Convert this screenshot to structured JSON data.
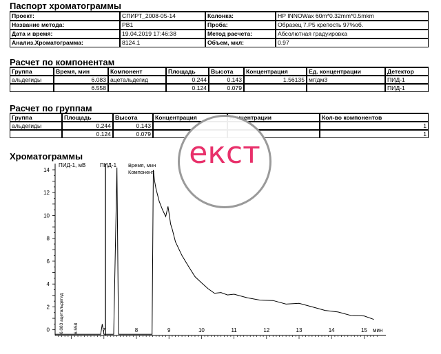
{
  "passport": {
    "title": "Паспорт хроматограммы",
    "rows": [
      [
        "Проект:",
        "СПИРТ_2008-05-14",
        "Колонка:",
        "HP INNOWax 60m*0.32mm*0.5mkm"
      ],
      [
        "Название метода:",
        "PB1",
        "Проба:",
        "Образец 7.Р5 крепость 97%об."
      ],
      [
        "Дата и время:",
        "19.04.2019 17:46:38",
        "Метод расчета:",
        "Абсолютная градуировка"
      ],
      [
        "Анализ.Хроматограмма:",
        "8124.1",
        "Объем, мкл:",
        "0.97"
      ]
    ]
  },
  "components": {
    "title": "Расчет по компонентам",
    "headers": [
      "Группа",
      "Время, мин",
      "Компонент",
      "Площадь",
      "Высота",
      "Концентрация",
      "Ед. концентрации",
      "Детектор"
    ],
    "rows": [
      [
        "альдегиды",
        "6.083",
        "ацетальдегид",
        "0.244",
        "0.143",
        "1.56135",
        "мг/дм3",
        "ПИД-1"
      ],
      [
        "",
        "6.558",
        "",
        "0.124",
        "0.079",
        "",
        "",
        "ПИД-1"
      ]
    ]
  },
  "groups": {
    "title": "Расчет по группам",
    "headers": [
      "Группа",
      "Площадь",
      "Высота",
      "Концентрация",
      "Концентрации",
      "Кол-во компонентов"
    ],
    "rows": [
      [
        "альдегиды",
        "0.244",
        "0.143",
        "",
        "",
        "1"
      ],
      [
        "",
        "0.124",
        "0.079",
        "",
        "",
        "1"
      ]
    ]
  },
  "chromatograms": {
    "title": "Хроматограммы",
    "y_axis_label": "ПИД-1, мВ",
    "channel_label": "ПИД-1",
    "legend_time": "Время, мин",
    "legend_component": "Компонент",
    "x_unit": "мин",
    "peak_labels": [
      "6.083 ацетальдегид",
      "6.558"
    ]
  },
  "watermark": {
    "text": "екст",
    "color": "#e8306a"
  },
  "chart_data": {
    "type": "line",
    "xlim": [
      5.5,
      15.5
    ],
    "ylim": [
      -0.5,
      14.3
    ],
    "x_ticks": [
      7,
      8,
      9,
      10,
      11,
      12,
      13,
      14,
      15
    ],
    "y_ticks": [
      0,
      2,
      4,
      6,
      8,
      10,
      12,
      14
    ],
    "x": [
      5.5,
      6.5,
      6.9,
      6.95,
      7.0,
      7.05,
      7.3,
      7.4,
      7.45,
      7.5,
      8.48,
      8.52,
      8.56,
      8.6,
      8.7,
      8.8,
      8.9,
      8.97,
      9.0,
      9.05,
      9.1,
      9.2,
      9.4,
      9.6,
      9.8,
      10.0,
      10.2,
      10.4,
      10.6,
      10.8,
      11.0,
      11.4,
      11.8,
      12.2,
      12.6,
      13.0,
      13.4,
      13.8,
      14.2,
      14.6,
      15.0,
      15.3
    ],
    "y": [
      -0.4,
      -0.4,
      -0.4,
      0.5,
      -0.4,
      -0.4,
      -0.4,
      14.2,
      -0.4,
      -0.4,
      -0.4,
      14.0,
      13.0,
      12.3,
      11.3,
      10.4,
      9.9,
      10.9,
      10.2,
      9.3,
      8.7,
      7.7,
      6.6,
      5.5,
      4.7,
      4.0,
      3.6,
      3.3,
      3.2,
      3.1,
      3.0,
      2.8,
      2.7,
      2.5,
      2.3,
      2.2,
      2.0,
      1.8,
      1.5,
      1.3,
      1.1,
      0.9
    ]
  }
}
